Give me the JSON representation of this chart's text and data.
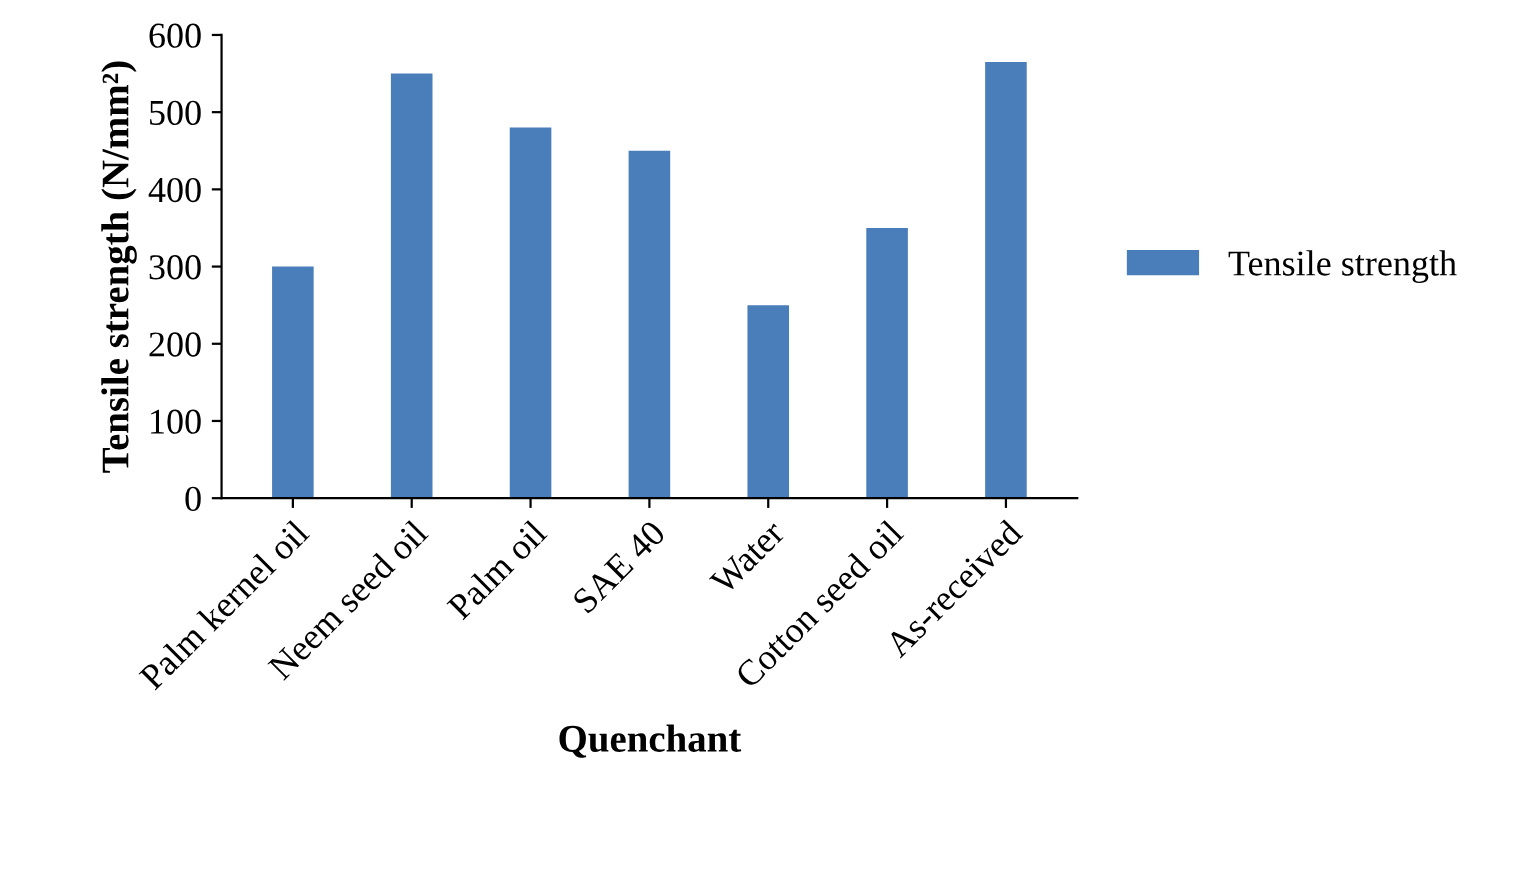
{
  "chart_data": {
    "type": "bar",
    "xlabel": "Quenchant",
    "ylabel": "Tensile strength (N/mm²)",
    "categories": [
      "Palm kernel oil",
      "Neem seed oil",
      "Palm oil",
      "SAE 40",
      "Water",
      "Cotton seed oil",
      "As-received"
    ],
    "series": [
      {
        "name": "Tensile strength",
        "color": "#4a7ebb",
        "values": [
          300,
          550,
          480,
          450,
          250,
          350,
          565
        ]
      }
    ],
    "ylim": [
      0,
      600
    ],
    "yticks": [
      0,
      100,
      200,
      300,
      400,
      500,
      600
    ],
    "grid": false,
    "legend": "right"
  }
}
